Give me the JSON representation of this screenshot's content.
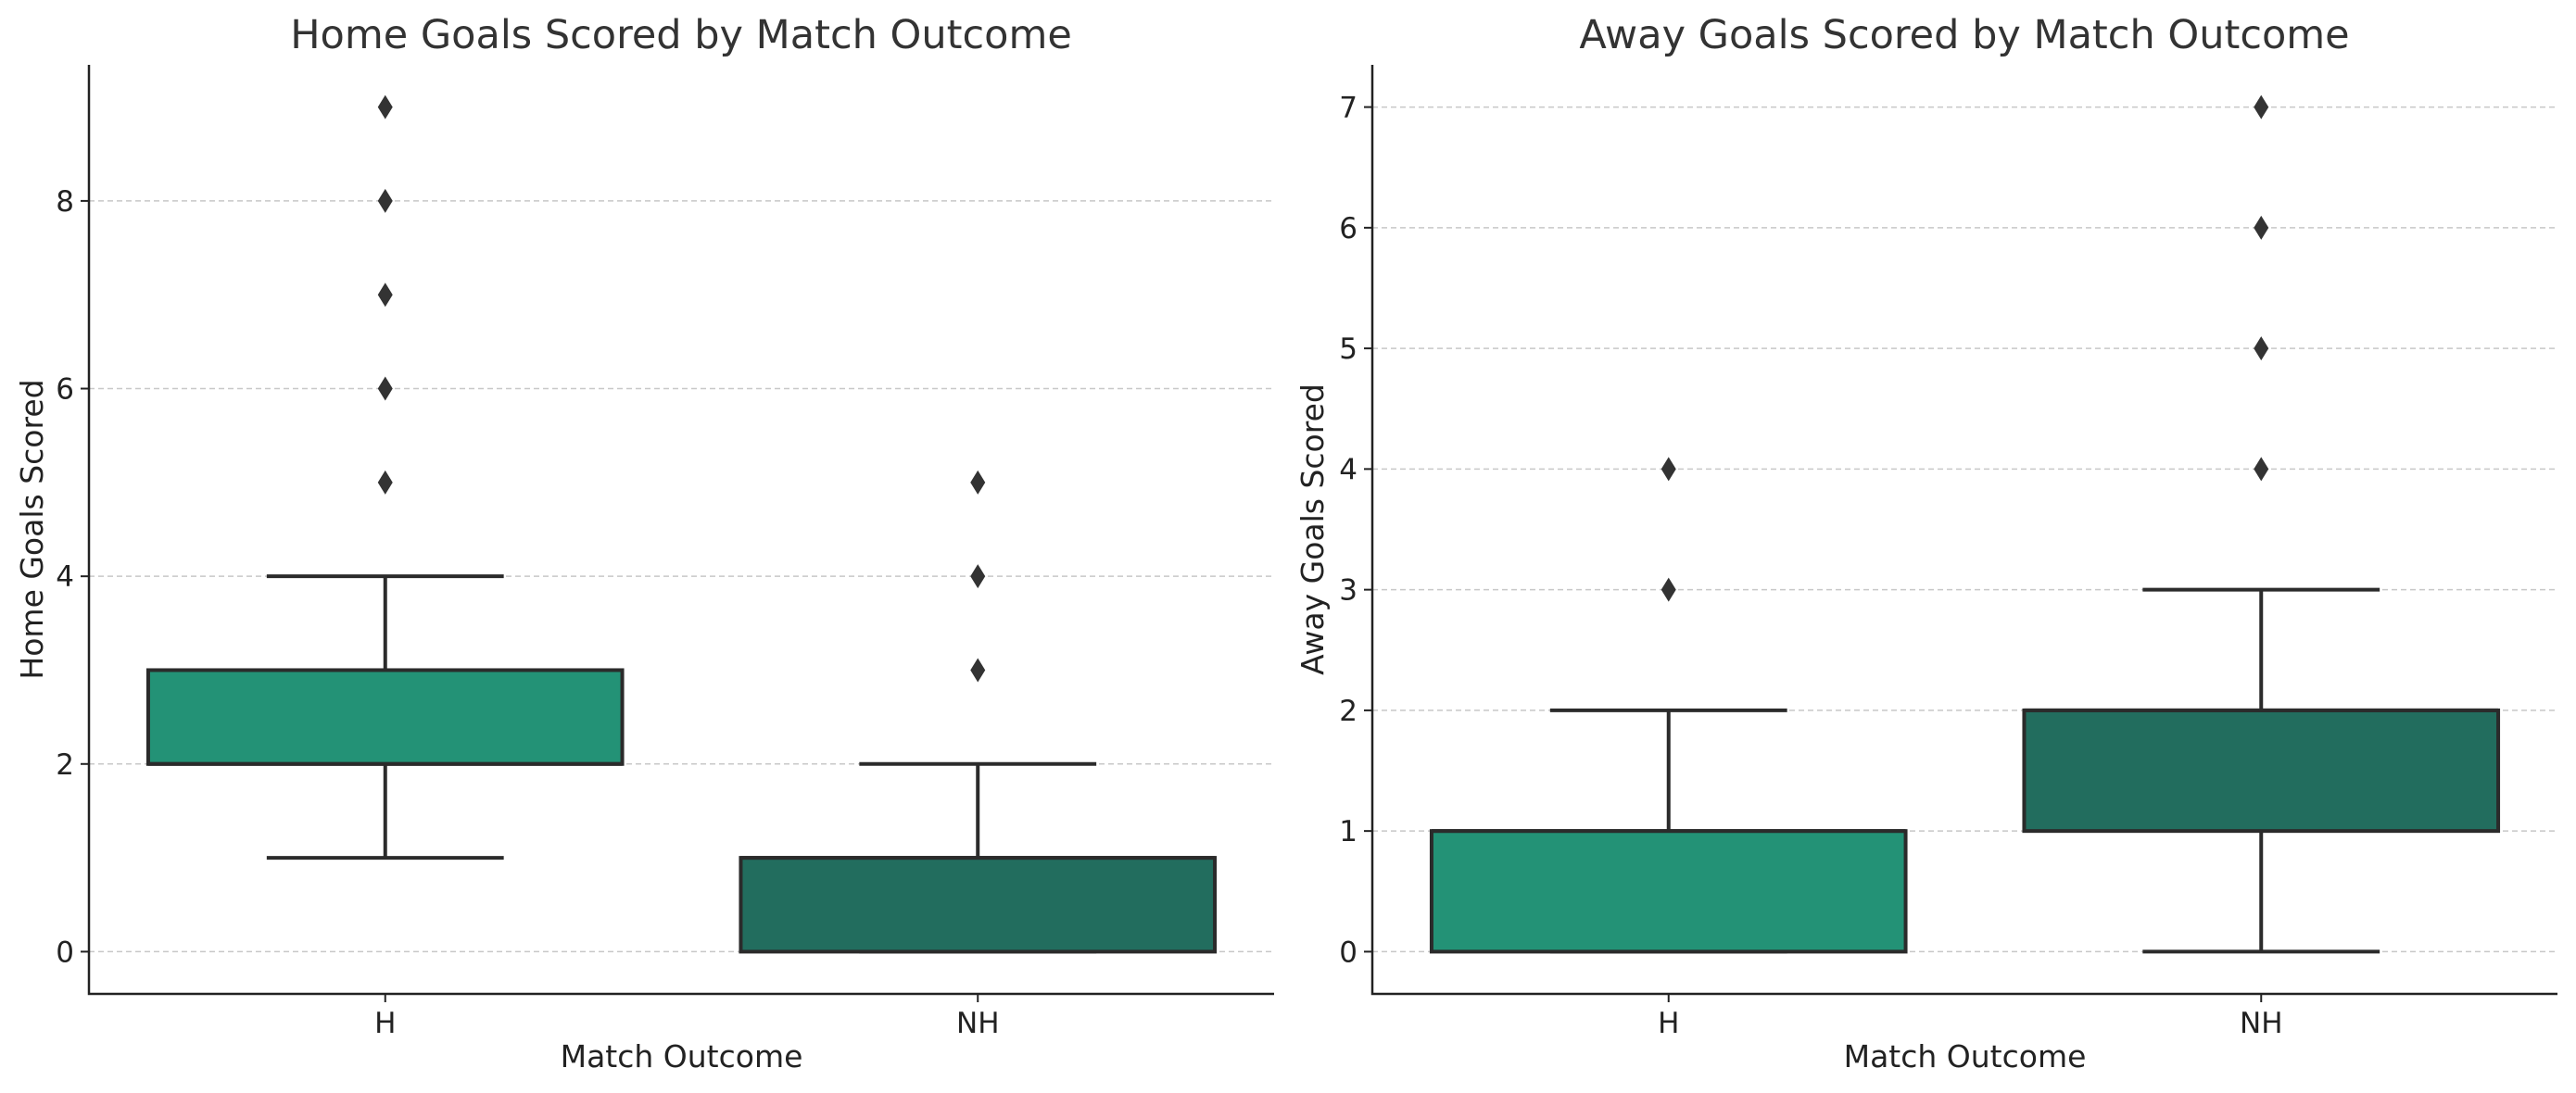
{
  "chart_data": [
    {
      "type": "box",
      "title": "Home Goals Scored by Match Outcome",
      "xlabel": "Match Outcome",
      "ylabel": "Home Goals Scored",
      "categories": [
        "H",
        "NH"
      ],
      "ylim": [
        -0.45,
        9.45
      ],
      "yticks": [
        0,
        2,
        4,
        6,
        8
      ],
      "grid": "y",
      "colors": [
        "#239276",
        "#226d5e"
      ],
      "boxes": [
        {
          "category": "H",
          "whisker_low": 1,
          "q1": 2,
          "median": 2,
          "q3": 3,
          "whisker_high": 4,
          "fliers": [
            5,
            6,
            7,
            8,
            9
          ]
        },
        {
          "category": "NH",
          "whisker_low": 0,
          "q1": 0,
          "median": 1,
          "q3": 1,
          "whisker_high": 2,
          "fliers": [
            3,
            4,
            5
          ]
        }
      ]
    },
    {
      "type": "box",
      "title": "Away Goals Scored by Match Outcome",
      "xlabel": "Match Outcome",
      "ylabel": "Away Goals Scored",
      "categories": [
        "H",
        "NH"
      ],
      "ylim": [
        -0.35,
        7.35
      ],
      "yticks": [
        0,
        1,
        2,
        3,
        4,
        5,
        6,
        7
      ],
      "grid": "y",
      "colors": [
        "#239276",
        "#226d5e"
      ],
      "boxes": [
        {
          "category": "H",
          "whisker_low": 0,
          "q1": 0,
          "median": 1,
          "q3": 1,
          "whisker_high": 2,
          "fliers": [
            3,
            4
          ]
        },
        {
          "category": "NH",
          "whisker_low": 0,
          "q1": 1,
          "median": 2,
          "q3": 2,
          "whisker_high": 3,
          "fliers": [
            4,
            5,
            6,
            7
          ]
        }
      ]
    }
  ]
}
